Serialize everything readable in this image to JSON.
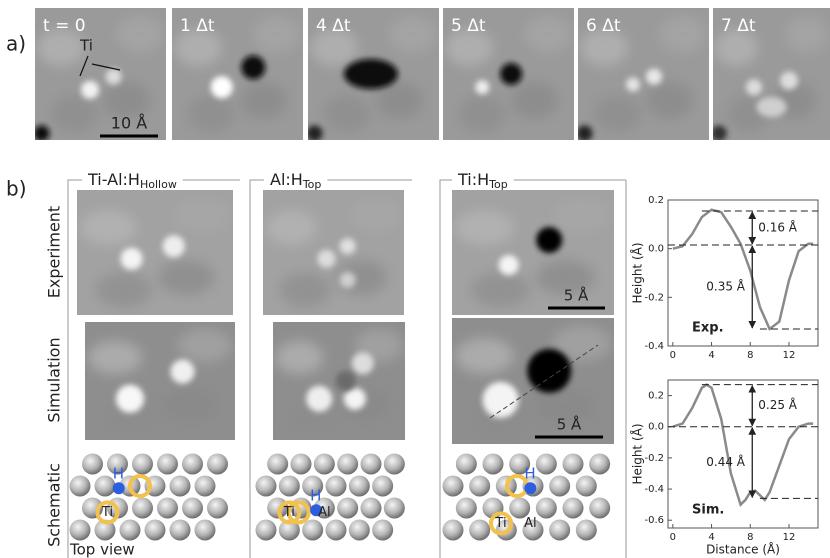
{
  "panel_a": {
    "label": "a)",
    "frames": [
      "t = 0",
      "1 Δt",
      "4 Δt",
      "5 Δt",
      "6 Δt",
      "7 Δt"
    ],
    "atom_label": "Ti",
    "scale_bar": "10 Å"
  },
  "panel_b": {
    "label": "b)",
    "columns": [
      {
        "name": "Ti-Al:H",
        "subscript": "Hollow"
      },
      {
        "name": "Al:H",
        "subscript": "Top"
      },
      {
        "name": "Ti:H",
        "subscript": "Top"
      }
    ],
    "rows": [
      "Experiment",
      "Simulation",
      "Schematic"
    ],
    "scale_bars": [
      "5 Å",
      "5 Å"
    ],
    "schematics": [
      [
        "H",
        "Ti"
      ],
      [
        "H",
        "Ti",
        "Al"
      ],
      [
        "H",
        "Ti",
        "Al"
      ]
    ],
    "top_view": "Top view"
  },
  "chart_data": [
    {
      "type": "line",
      "ylabel": "Height (Å)",
      "tag": "Exp.",
      "x": [
        0,
        1,
        2,
        3,
        4,
        5,
        6,
        7,
        8,
        9,
        10,
        11,
        12,
        13,
        14,
        14.5
      ],
      "series": [
        {
          "color": "#8a8a8a",
          "values": [
            0,
            0.01,
            0.06,
            0.13,
            0.16,
            0.15,
            0.09,
            0.02,
            -0.09,
            -0.24,
            -0.33,
            -0.3,
            -0.13,
            -0.01,
            0.02,
            0.02
          ]
        }
      ],
      "xlim": [
        -0.5,
        15
      ],
      "ylim": [
        -0.4,
        0.2
      ],
      "xticks": [
        0,
        4,
        8,
        12
      ],
      "yticks": [
        0.2,
        {
          "value": 0,
          "label": "0.0"
        },
        -0.2,
        -0.4
      ],
      "ref_lines": [
        0.155,
        0.015,
        -0.33
      ],
      "annotations": [
        "0.16 Å",
        "0.35 Å"
      ]
    },
    {
      "type": "line",
      "ylabel": "Height (Å)",
      "xlabel": "Distance (Å)",
      "tag": "Sim.",
      "x": [
        0,
        1,
        2,
        3,
        3.5,
        4,
        5,
        6,
        7,
        7.5,
        8,
        8.5,
        9,
        9.5,
        10,
        11,
        12,
        13,
        14,
        14.5
      ],
      "series": [
        {
          "color": "#8a8a8a",
          "values": [
            0,
            0.02,
            0.12,
            0.25,
            0.27,
            0.25,
            0.05,
            -0.3,
            -0.5,
            -0.47,
            -0.42,
            -0.41,
            -0.44,
            -0.47,
            -0.42,
            -0.25,
            -0.08,
            0,
            0.02,
            0.02
          ]
        }
      ],
      "xlim": [
        -0.5,
        15
      ],
      "ylim": [
        -0.65,
        0.3
      ],
      "xticks": [
        0,
        4,
        8,
        12
      ],
      "yticks": [
        0.2,
        {
          "value": 0,
          "label": "0.0"
        },
        -0.2,
        -0.4,
        -0.6
      ],
      "ref_lines": [
        0.27,
        0,
        -0.46
      ],
      "annotations": [
        "0.25 Å",
        "0.44 Å"
      ]
    }
  ]
}
